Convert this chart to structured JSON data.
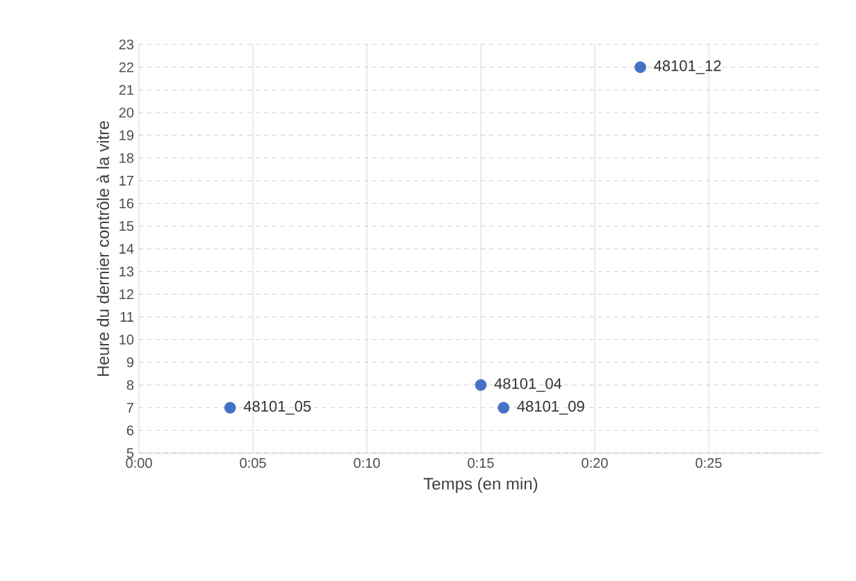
{
  "chart_data": {
    "type": "scatter",
    "xlabel": "Temps (en min)",
    "ylabel": "Heure du dernier contrôle à la vitre",
    "x": [
      4,
      15,
      16,
      22
    ],
    "series": [
      {
        "color": "#4472c4",
        "values": [
          7,
          8,
          7,
          22
        ]
      }
    ],
    "xlim": [
      0,
      30
    ],
    "ylim": [
      5,
      23
    ],
    "xticks": [
      {
        "value": 0,
        "label": "0:00"
      },
      {
        "value": 5,
        "label": "0:05"
      },
      {
        "value": 10,
        "label": "0:10"
      },
      {
        "value": 15,
        "label": "0:15"
      },
      {
        "value": 20,
        "label": "0:20"
      },
      {
        "value": 25,
        "label": "0:25"
      }
    ],
    "yticks": [
      5,
      6,
      7,
      8,
      9,
      10,
      11,
      12,
      13,
      14,
      15,
      16,
      17,
      18,
      19,
      20,
      21,
      22,
      23
    ],
    "grid": true,
    "marker": "circle",
    "annotations": [
      {
        "text": "48101_05",
        "x": 4,
        "y": 7
      },
      {
        "text": "48101_04",
        "x": 15,
        "y": 8
      },
      {
        "text": "48101_09",
        "x": 16,
        "y": 7
      },
      {
        "text": "48101_12",
        "x": 22,
        "y": 22
      }
    ]
  }
}
